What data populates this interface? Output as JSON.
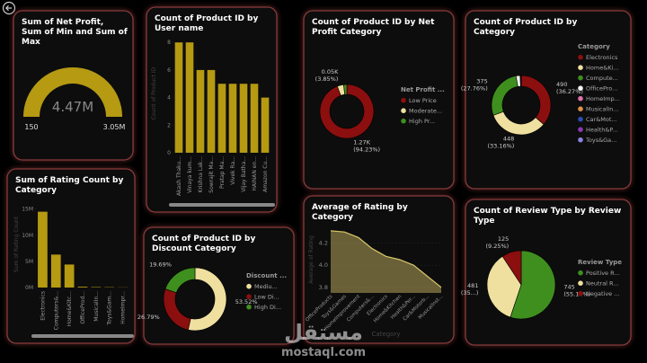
{
  "chart_data": [
    {
      "type": "gauge",
      "title": "Sum of Net Profit, Sum of Min and Sum of Max",
      "value": 4470000,
      "value_label": "4.47M",
      "min": 150,
      "max": {
        "value": 3050000,
        "label": "3.05M"
      },
      "color": "#b59a12"
    },
    {
      "type": "bar",
      "title": "Count of Product ID by User name",
      "y_label": "Count of Product ID",
      "categories": [
        "Akash Thaku...",
        "Vinaya kum...",
        "Krishna Lak...",
        "Sowrajit Ma...",
        "Pratap Ma...",
        "Vivek Ra...",
        "Vijay Batha...",
        "HAINAN en...",
        "Amazon Cu..."
      ],
      "values": [
        8,
        8,
        6,
        6,
        5,
        5,
        5,
        5,
        4
      ],
      "color": "#b59a12",
      "ylim": [
        0,
        8.6
      ],
      "yticks": [
        0,
        2,
        4,
        6,
        8
      ],
      "grid": false
    },
    {
      "type": "donut",
      "title": "Count of Product ID by Net Profit Category",
      "legend_title": "Net Profit ...",
      "categories": [
        "Low Price",
        "Moderate...",
        "High Pr..."
      ],
      "values": [
        1270,
        52,
        26
      ],
      "value_labels": [
        "1.27K (94.23%)",
        "0.05K (3.85%)",
        null
      ],
      "colors": [
        "#8b0f0f",
        "#efe0a0",
        "#3f8f1f"
      ]
    },
    {
      "type": "donut",
      "title": "Count of Product ID by Category",
      "legend_title": "Category",
      "categories": [
        "Electronics",
        "Home&Ki...",
        "Compute...",
        "OfficePro...",
        "HomeImp...",
        "MusicalIn...",
        "Car&Mot...",
        "Health&P...",
        "Toys&Ga..."
      ],
      "values": [
        490,
        448,
        375,
        31,
        2,
        2,
        1,
        1,
        1
      ],
      "value_labels": [
        "490 (36.27%)",
        "448 (33.16%)",
        "375 (27.76%)",
        null,
        null,
        null,
        null,
        null,
        null
      ],
      "colors": [
        "#8b0f0f",
        "#efe0a0",
        "#3f8f1f",
        "#f2f2f2",
        "#e070a8",
        "#e0904a",
        "#2a4fb0",
        "#8a3ab0",
        "#8a84e0"
      ]
    },
    {
      "type": "bar",
      "title": "Sum of Rating Count by Category",
      "y_label": "Sum of Rating Count",
      "categories": [
        "Electronics",
        "Computers&...",
        "Home&Kitc...",
        "OfficeProd...",
        "MusicalIn...",
        "Toys&Gam...",
        "HomeImpr..."
      ],
      "values": [
        14500000,
        6300000,
        4400000,
        150000,
        90000,
        60000,
        30000
      ],
      "color": "#b59a12",
      "ylim": [
        0,
        16500000
      ],
      "yticks": [
        {
          "value": 0,
          "label": "0M"
        },
        {
          "value": 5000000,
          "label": "5M"
        },
        {
          "value": 10000000,
          "label": "10M"
        },
        {
          "value": 15000000,
          "label": "15M"
        }
      ],
      "grid": false
    },
    {
      "type": "donut",
      "title": "Count of Product ID by Discount Category",
      "legend_title": "Discount ...",
      "categories": [
        "Mediu...",
        "Low Di...",
        "High Di..."
      ],
      "values": [
        53.52,
        26.79,
        19.69
      ],
      "value_labels": [
        "53.52%",
        "26.79%",
        "19.69%"
      ],
      "colors": [
        "#efe0a0",
        "#8b0f0f",
        "#3f8f1f"
      ]
    },
    {
      "type": "area",
      "title": "Average of Rating by Category",
      "x_label": "Category",
      "y_label": "Average of Rating",
      "categories": [
        "OfficeProducts",
        "Toys&Games",
        "HomeImprovement",
        "Computers&...",
        "Electronics",
        "Home&Kitchen",
        "Health&Per...",
        "Car&Motorb...",
        "MusicalInst..."
      ],
      "values": [
        4.31,
        4.3,
        4.25,
        4.15,
        4.08,
        4.05,
        4.0,
        3.9,
        3.8
      ],
      "color": "#d9c66a",
      "ylim": [
        3.75,
        4.35
      ],
      "yticks": [
        3.8,
        {
          "value": 4,
          "label": "4.0"
        },
        4.2
      ],
      "grid": true
    },
    {
      "type": "pie",
      "title": "Count of Review Type by Review Type",
      "legend_title": "Review Type",
      "categories": [
        "Positive R...",
        "Neutral R...",
        "Negative ..."
      ],
      "values": [
        745,
        481,
        125
      ],
      "value_labels": [
        "745 (55.14%)",
        "481 (35...)",
        "125 (9.25%)"
      ],
      "colors": [
        "#3f8f1f",
        "#efe0a0",
        "#8b0f0f"
      ]
    }
  ],
  "watermark": {
    "name": "مستقل",
    "site": "mostaql.com"
  }
}
